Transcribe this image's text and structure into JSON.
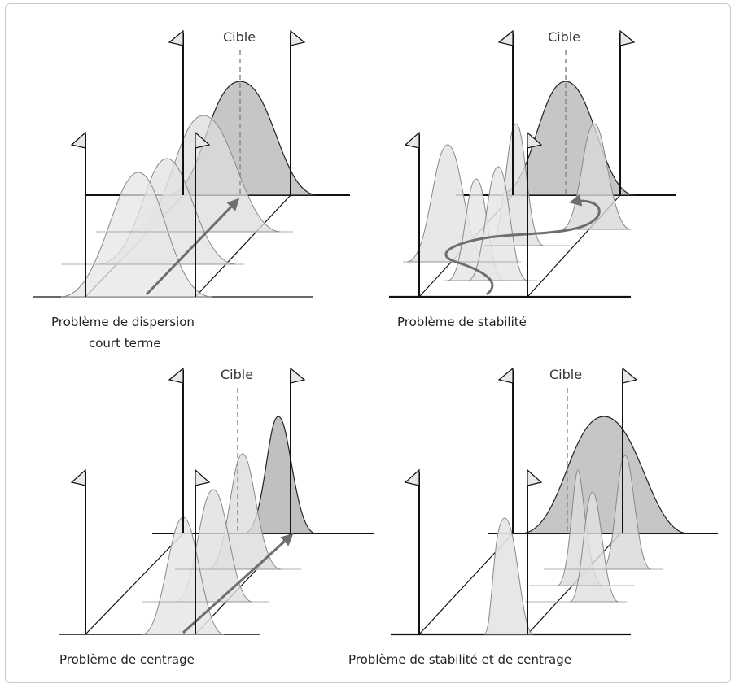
{
  "target_label": "Cible",
  "panels": [
    {
      "id": "dispersion",
      "caption_lines": [
        "Problème de dispersion",
        "court terme"
      ]
    },
    {
      "id": "stabilite",
      "caption_lines": [
        "Problème de stabilité"
      ]
    },
    {
      "id": "centrage",
      "caption_lines": [
        "Problème de centrage"
      ]
    },
    {
      "id": "stabilite-centrage",
      "caption_lines": [
        "Problème de stabilité et de centrage"
      ]
    }
  ],
  "colors": {
    "line": "#111111",
    "curve_light": "#e6e6e6",
    "curve_mid": "#d2d2d2",
    "curve_dark": "#b9b9b9",
    "arrow": "#6e6e6e",
    "target": "#8a8a8a",
    "frame": "#c8c8c8"
  }
}
